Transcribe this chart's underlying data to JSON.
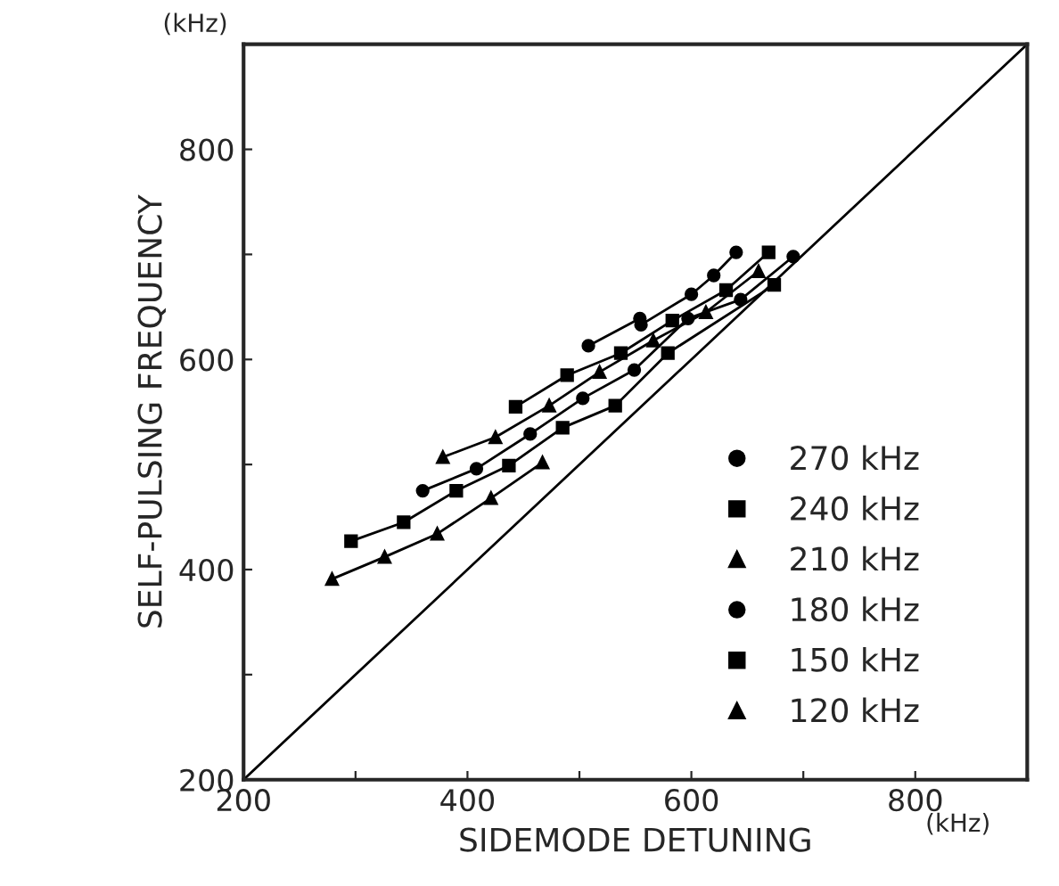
{
  "chart_data": {
    "type": "line",
    "xlabel": "SIDEMODE DETUNING",
    "ylabel": "SELF-PULSING FREQUENCY",
    "annotations": [
      "(kHz)",
      "(kHz)"
    ],
    "xlim": [
      200,
      900
    ],
    "ylim": [
      200,
      900
    ],
    "xticks": [
      200,
      {
        "value": 300,
        "label": null
      },
      400,
      {
        "value": 500,
        "label": null
      },
      600,
      {
        "value": 700,
        "label": null
      },
      800
    ],
    "yticks": [
      200,
      {
        "value": 300,
        "label": null
      },
      400,
      {
        "value": 500,
        "label": null
      },
      600,
      {
        "value": 700,
        "label": null
      },
      800
    ],
    "grid": false,
    "legend": "bottom right",
    "line_style": "solid",
    "series": [
      {
        "name": "270 kHz",
        "color": "#000000",
        "marker": "circle",
        "x": [
          508,
          554,
          555,
          600,
          620,
          640
        ],
        "values": [
          613,
          639,
          633,
          662,
          680,
          702
        ]
      },
      {
        "name": "240 kHz",
        "color": "#000000",
        "marker": "square",
        "x": [
          443,
          489,
          537,
          583,
          631,
          669
        ],
        "values": [
          555,
          585,
          606,
          637,
          666,
          702
        ]
      },
      {
        "name": "210 kHz",
        "color": "#000000",
        "marker": "triangle",
        "x": [
          378,
          425,
          473,
          518,
          566,
          613,
          660
        ],
        "values": [
          507,
          526,
          556,
          588,
          618,
          645,
          684
        ]
      },
      {
        "name": "180 kHz",
        "color": "#000000",
        "marker": "circle",
        "x": [
          360,
          408,
          456,
          503,
          549,
          597,
          644,
          691
        ],
        "values": [
          475,
          496,
          529,
          563,
          590,
          639,
          657,
          698
        ]
      },
      {
        "name": "150 kHz",
        "color": "#000000",
        "marker": "square",
        "x": [
          296,
          343,
          390,
          437,
          485,
          532,
          579,
          674
        ],
        "values": [
          427,
          445,
          475,
          499,
          535,
          556,
          606,
          671
        ]
      },
      {
        "name": "120 kHz",
        "color": "#000000",
        "marker": "triangle",
        "x": [
          279,
          326,
          373,
          421,
          467
        ],
        "values": [
          391,
          412,
          434,
          468,
          502
        ]
      },
      {
        "color": "#000000",
        "marker": "none",
        "x": [
          200,
          900
        ],
        "values": [
          200,
          900
        ]
      }
    ]
  }
}
